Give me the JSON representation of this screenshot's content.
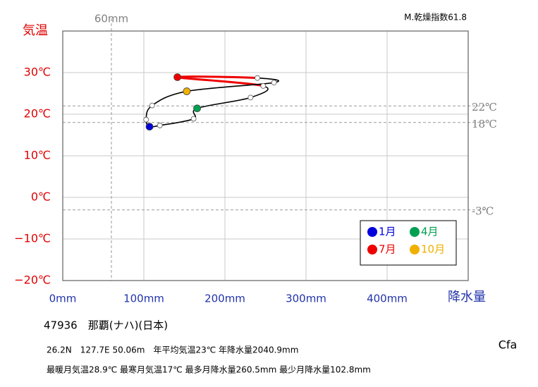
{
  "chart_data": {
    "type": "climograph",
    "title": "47936　那覇(ナハ)(日本)",
    "aridity_index": "M.乾燥指数61.8",
    "info_lines": [
      "26.2N　127.7E 50.06m　年平均気温23℃ 年降水量2040.9mm",
      "最暖月気温28.9℃ 最寒月気温17℃ 最多月降水量260.5mm 最少月降水量102.8mm"
    ],
    "climate_class": "Cfa",
    "y_label": "気温",
    "x_label": "降水量",
    "x": [
      107.0,
      119.7,
      161.4,
      165.7,
      231.6,
      247.2,
      141.4,
      240.0,
      260.5,
      152.9,
      110.2,
      102.8
    ],
    "values": [
      17.0,
      17.3,
      18.9,
      21.4,
      24.0,
      26.8,
      28.9,
      28.7,
      27.6,
      25.5,
      22.1,
      18.7
    ],
    "line_color": "#000000",
    "summer_color": "#ee0000",
    "summer_segments": [
      5,
      6
    ],
    "legend": [
      {
        "name": "1月",
        "color": "#0000dd",
        "index": 0
      },
      {
        "name": "4月",
        "color": "#00a050",
        "index": 3
      },
      {
        "name": "7月",
        "color": "#ee0000",
        "index": 6
      },
      {
        "name": "10月",
        "color": "#f0b000",
        "index": 9
      }
    ],
    "xlim": [
      0,
      500
    ],
    "ylim": [
      -20,
      40
    ],
    "xticks": [
      {
        "value": 0,
        "label": "0mm"
      },
      {
        "value": 100,
        "label": "100mm"
      },
      {
        "value": 200,
        "label": "200mm"
      },
      {
        "value": 300,
        "label": "300mm"
      },
      {
        "value": 400,
        "label": "400mm"
      }
    ],
    "yticks": [
      {
        "value": -20,
        "label": "−20℃"
      },
      {
        "value": -10,
        "label": "−10℃"
      },
      {
        "value": 0,
        "label": "0℃"
      },
      {
        "value": 10,
        "label": "10℃"
      },
      {
        "value": 20,
        "label": "20℃"
      },
      {
        "value": 30,
        "label": "30℃"
      }
    ],
    "x_reference": [
      {
        "value": 60,
        "label": "60mm"
      }
    ],
    "y_reference": [
      {
        "value": 22,
        "label": "22℃"
      },
      {
        "value": 18,
        "label": "18℃"
      },
      {
        "value": -3,
        "label": "-3℃"
      }
    ],
    "grid": true
  }
}
